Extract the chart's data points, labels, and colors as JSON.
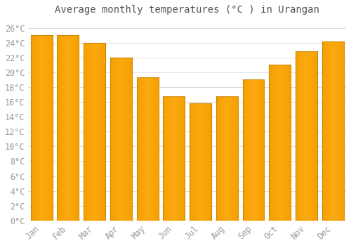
{
  "title": "Average monthly temperatures (°C ) in Urangan",
  "months": [
    "Jan",
    "Feb",
    "Mar",
    "Apr",
    "May",
    "Jun",
    "Jul",
    "Aug",
    "Sep",
    "Oct",
    "Nov",
    "Dec"
  ],
  "values": [
    25.0,
    25.0,
    24.0,
    22.0,
    19.3,
    16.8,
    15.8,
    16.8,
    19.0,
    21.0,
    22.8,
    24.2
  ],
  "bar_color_center": "#FFB733",
  "bar_color_edge": "#F5A000",
  "bar_outline_color": "#CC8800",
  "background_color": "#FFFFFF",
  "plot_bg_color": "#FFFFFF",
  "grid_color": "#DDDDDD",
  "tick_label_color": "#999999",
  "title_color": "#555555",
  "ylim": [
    0,
    27
  ],
  "yticks": [
    0,
    2,
    4,
    6,
    8,
    10,
    12,
    14,
    16,
    18,
    20,
    22,
    24,
    26
  ],
  "title_fontsize": 10,
  "tick_fontsize": 8.5,
  "bar_width": 0.82
}
